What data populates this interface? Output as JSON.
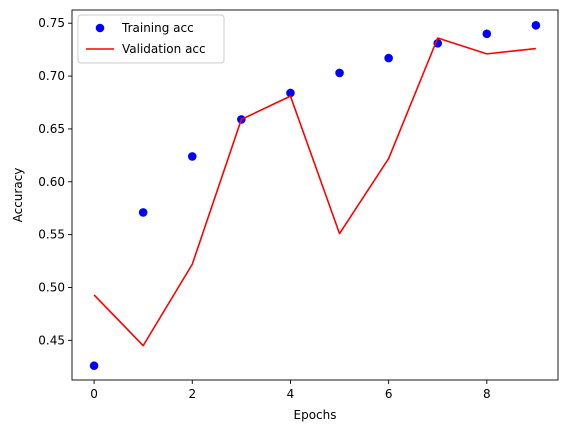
{
  "chart_data": {
    "type": "line",
    "title": "",
    "xlabel": "Epochs",
    "ylabel": "Accuracy",
    "xlim": [
      -0.45,
      9.45
    ],
    "ylim": [
      0.4125,
      0.7625
    ],
    "xticks": [
      0,
      2,
      4,
      6,
      8
    ],
    "yticks": [
      0.45,
      0.5,
      0.55,
      0.6,
      0.65,
      0.7,
      0.75
    ],
    "xtick_labels": [
      "0",
      "2",
      "4",
      "6",
      "8"
    ],
    "ytick_labels": [
      "0.45",
      "0.50",
      "0.55",
      "0.60",
      "0.65",
      "0.70",
      "0.75"
    ],
    "grid": false,
    "legend_position": "top-left",
    "x": [
      0,
      1,
      2,
      3,
      4,
      5,
      6,
      7,
      8,
      9
    ],
    "series": [
      {
        "name": "Training acc",
        "style": "scatter",
        "color": "#0000ff",
        "values": [
          0.426,
          0.571,
          0.624,
          0.659,
          0.684,
          0.703,
          0.717,
          0.731,
          0.74,
          0.748
        ]
      },
      {
        "name": "Validation acc",
        "style": "line",
        "color": "#ff0000",
        "values": [
          0.493,
          0.445,
          0.522,
          0.659,
          0.681,
          0.551,
          0.622,
          0.736,
          0.721,
          0.726
        ]
      }
    ]
  }
}
